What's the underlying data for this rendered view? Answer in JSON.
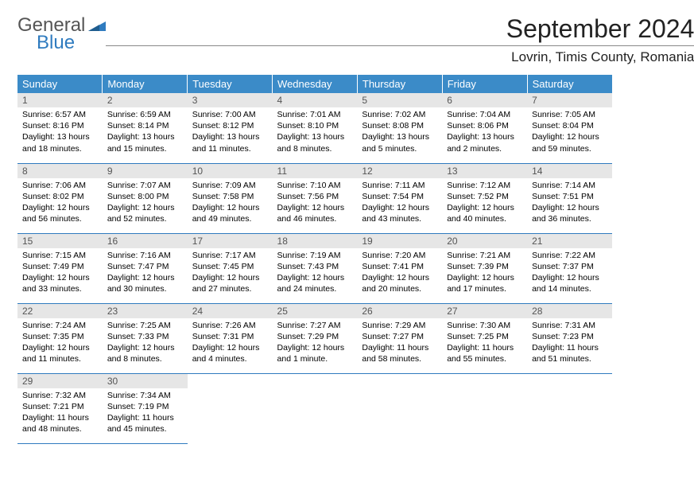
{
  "logo": {
    "line1": "General",
    "line2": "Blue"
  },
  "title": "September 2024",
  "location": "Lovrin, Timis County, Romania",
  "colors": {
    "header_bg": "#3b8bc8",
    "header_fg": "#ffffff",
    "daynum_bg": "#e6e6e6",
    "daynum_fg": "#555555",
    "border": "#2f7bbf",
    "logo_gray": "#555555",
    "logo_blue": "#2f7bbf"
  },
  "weekdays": [
    "Sunday",
    "Monday",
    "Tuesday",
    "Wednesday",
    "Thursday",
    "Friday",
    "Saturday"
  ],
  "weeks": [
    [
      {
        "n": "1",
        "sr": "Sunrise: 6:57 AM",
        "ss": "Sunset: 8:16 PM",
        "dl": "Daylight: 13 hours and 18 minutes."
      },
      {
        "n": "2",
        "sr": "Sunrise: 6:59 AM",
        "ss": "Sunset: 8:14 PM",
        "dl": "Daylight: 13 hours and 15 minutes."
      },
      {
        "n": "3",
        "sr": "Sunrise: 7:00 AM",
        "ss": "Sunset: 8:12 PM",
        "dl": "Daylight: 13 hours and 11 minutes."
      },
      {
        "n": "4",
        "sr": "Sunrise: 7:01 AM",
        "ss": "Sunset: 8:10 PM",
        "dl": "Daylight: 13 hours and 8 minutes."
      },
      {
        "n": "5",
        "sr": "Sunrise: 7:02 AM",
        "ss": "Sunset: 8:08 PM",
        "dl": "Daylight: 13 hours and 5 minutes."
      },
      {
        "n": "6",
        "sr": "Sunrise: 7:04 AM",
        "ss": "Sunset: 8:06 PM",
        "dl": "Daylight: 13 hours and 2 minutes."
      },
      {
        "n": "7",
        "sr": "Sunrise: 7:05 AM",
        "ss": "Sunset: 8:04 PM",
        "dl": "Daylight: 12 hours and 59 minutes."
      }
    ],
    [
      {
        "n": "8",
        "sr": "Sunrise: 7:06 AM",
        "ss": "Sunset: 8:02 PM",
        "dl": "Daylight: 12 hours and 56 minutes."
      },
      {
        "n": "9",
        "sr": "Sunrise: 7:07 AM",
        "ss": "Sunset: 8:00 PM",
        "dl": "Daylight: 12 hours and 52 minutes."
      },
      {
        "n": "10",
        "sr": "Sunrise: 7:09 AM",
        "ss": "Sunset: 7:58 PM",
        "dl": "Daylight: 12 hours and 49 minutes."
      },
      {
        "n": "11",
        "sr": "Sunrise: 7:10 AM",
        "ss": "Sunset: 7:56 PM",
        "dl": "Daylight: 12 hours and 46 minutes."
      },
      {
        "n": "12",
        "sr": "Sunrise: 7:11 AM",
        "ss": "Sunset: 7:54 PM",
        "dl": "Daylight: 12 hours and 43 minutes."
      },
      {
        "n": "13",
        "sr": "Sunrise: 7:12 AM",
        "ss": "Sunset: 7:52 PM",
        "dl": "Daylight: 12 hours and 40 minutes."
      },
      {
        "n": "14",
        "sr": "Sunrise: 7:14 AM",
        "ss": "Sunset: 7:51 PM",
        "dl": "Daylight: 12 hours and 36 minutes."
      }
    ],
    [
      {
        "n": "15",
        "sr": "Sunrise: 7:15 AM",
        "ss": "Sunset: 7:49 PM",
        "dl": "Daylight: 12 hours and 33 minutes."
      },
      {
        "n": "16",
        "sr": "Sunrise: 7:16 AM",
        "ss": "Sunset: 7:47 PM",
        "dl": "Daylight: 12 hours and 30 minutes."
      },
      {
        "n": "17",
        "sr": "Sunrise: 7:17 AM",
        "ss": "Sunset: 7:45 PM",
        "dl": "Daylight: 12 hours and 27 minutes."
      },
      {
        "n": "18",
        "sr": "Sunrise: 7:19 AM",
        "ss": "Sunset: 7:43 PM",
        "dl": "Daylight: 12 hours and 24 minutes."
      },
      {
        "n": "19",
        "sr": "Sunrise: 7:20 AM",
        "ss": "Sunset: 7:41 PM",
        "dl": "Daylight: 12 hours and 20 minutes."
      },
      {
        "n": "20",
        "sr": "Sunrise: 7:21 AM",
        "ss": "Sunset: 7:39 PM",
        "dl": "Daylight: 12 hours and 17 minutes."
      },
      {
        "n": "21",
        "sr": "Sunrise: 7:22 AM",
        "ss": "Sunset: 7:37 PM",
        "dl": "Daylight: 12 hours and 14 minutes."
      }
    ],
    [
      {
        "n": "22",
        "sr": "Sunrise: 7:24 AM",
        "ss": "Sunset: 7:35 PM",
        "dl": "Daylight: 12 hours and 11 minutes."
      },
      {
        "n": "23",
        "sr": "Sunrise: 7:25 AM",
        "ss": "Sunset: 7:33 PM",
        "dl": "Daylight: 12 hours and 8 minutes."
      },
      {
        "n": "24",
        "sr": "Sunrise: 7:26 AM",
        "ss": "Sunset: 7:31 PM",
        "dl": "Daylight: 12 hours and 4 minutes."
      },
      {
        "n": "25",
        "sr": "Sunrise: 7:27 AM",
        "ss": "Sunset: 7:29 PM",
        "dl": "Daylight: 12 hours and 1 minute."
      },
      {
        "n": "26",
        "sr": "Sunrise: 7:29 AM",
        "ss": "Sunset: 7:27 PM",
        "dl": "Daylight: 11 hours and 58 minutes."
      },
      {
        "n": "27",
        "sr": "Sunrise: 7:30 AM",
        "ss": "Sunset: 7:25 PM",
        "dl": "Daylight: 11 hours and 55 minutes."
      },
      {
        "n": "28",
        "sr": "Sunrise: 7:31 AM",
        "ss": "Sunset: 7:23 PM",
        "dl": "Daylight: 11 hours and 51 minutes."
      }
    ],
    [
      {
        "n": "29",
        "sr": "Sunrise: 7:32 AM",
        "ss": "Sunset: 7:21 PM",
        "dl": "Daylight: 11 hours and 48 minutes."
      },
      {
        "n": "30",
        "sr": "Sunrise: 7:34 AM",
        "ss": "Sunset: 7:19 PM",
        "dl": "Daylight: 11 hours and 45 minutes."
      },
      null,
      null,
      null,
      null,
      null
    ]
  ]
}
